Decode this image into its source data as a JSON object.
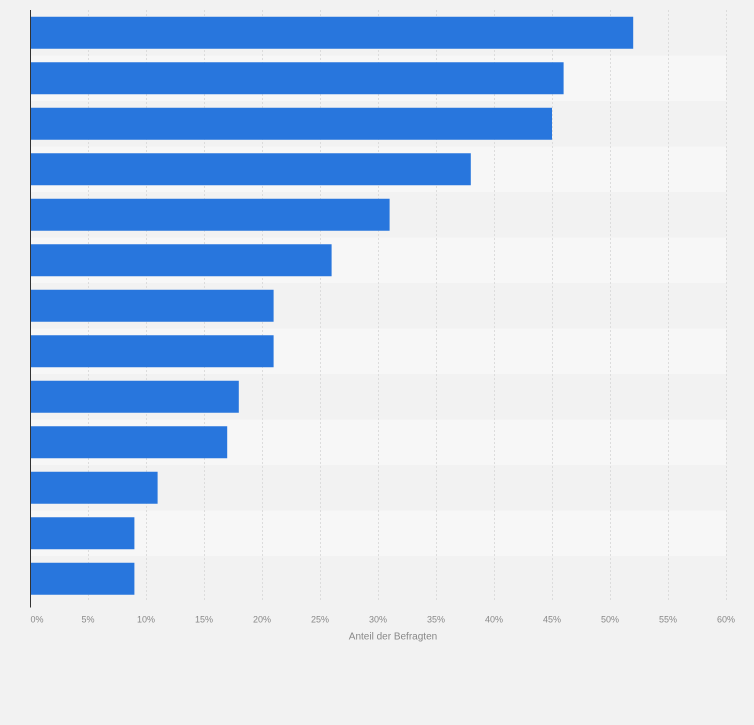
{
  "chart_data": {
    "type": "bar",
    "orientation": "horizontal",
    "title": "",
    "xlabel": "Anteil der Befragten",
    "ylabel": "",
    "xlim": [
      0,
      60
    ],
    "x_ticks": [
      0,
      5,
      10,
      15,
      20,
      25,
      30,
      35,
      40,
      45,
      50,
      55,
      60
    ],
    "x_tick_labels": [
      "0%",
      "5%",
      "10%",
      "15%",
      "20%",
      "25%",
      "30%",
      "35%",
      "40%",
      "45%",
      "50%",
      "55%",
      "60%"
    ],
    "categories": [
      "",
      "",
      "",
      "",
      "",
      "",
      "",
      "",
      "",
      "",
      "",
      "",
      ""
    ],
    "values": [
      52,
      46,
      45,
      38,
      31,
      26,
      21,
      21,
      18,
      17,
      11,
      9,
      9
    ],
    "grid": true,
    "bar_color": "#2876dd",
    "band_colors": [
      "#f2f2f2",
      "#f7f7f7"
    ],
    "grid_color": "#dcdcdc",
    "axis_color": "#333333",
    "tick_label_color": "#888888"
  }
}
